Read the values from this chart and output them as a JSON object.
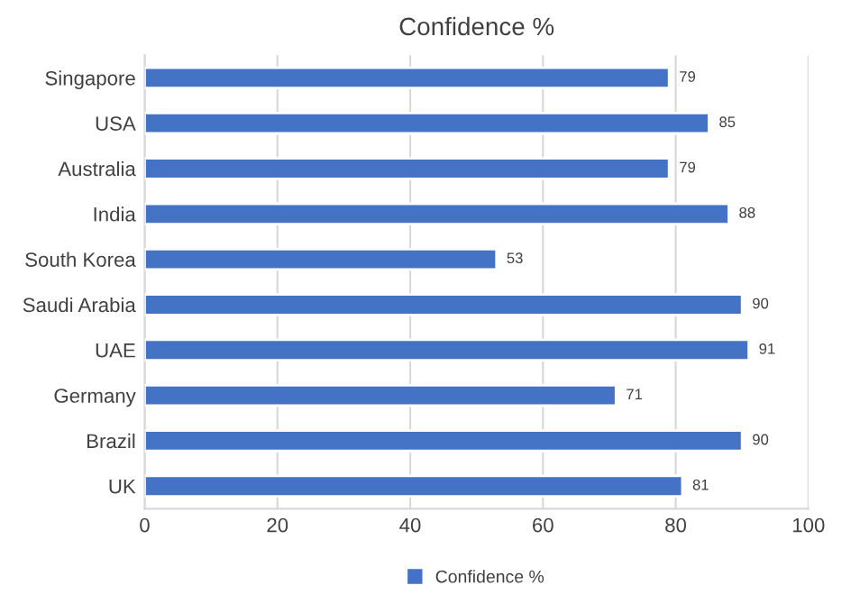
{
  "chart_data": {
    "type": "bar",
    "orientation": "horizontal",
    "title": "Confidence %",
    "categories": [
      "Singapore",
      "USA",
      "Australia",
      "India",
      "South Korea",
      "Saudi Arabia",
      "UAE",
      "Germany",
      "Brazil",
      "UK"
    ],
    "series": [
      {
        "name": "Confidence %",
        "color": "#4472c4",
        "values": [
          79,
          85,
          79,
          88,
          53,
          90,
          91,
          71,
          90,
          81
        ]
      }
    ],
    "xlim": [
      0,
      100
    ],
    "xticks": [
      0,
      20,
      40,
      60,
      80,
      100
    ],
    "grid": "x",
    "legend": "bottom",
    "data_labels": true
  }
}
